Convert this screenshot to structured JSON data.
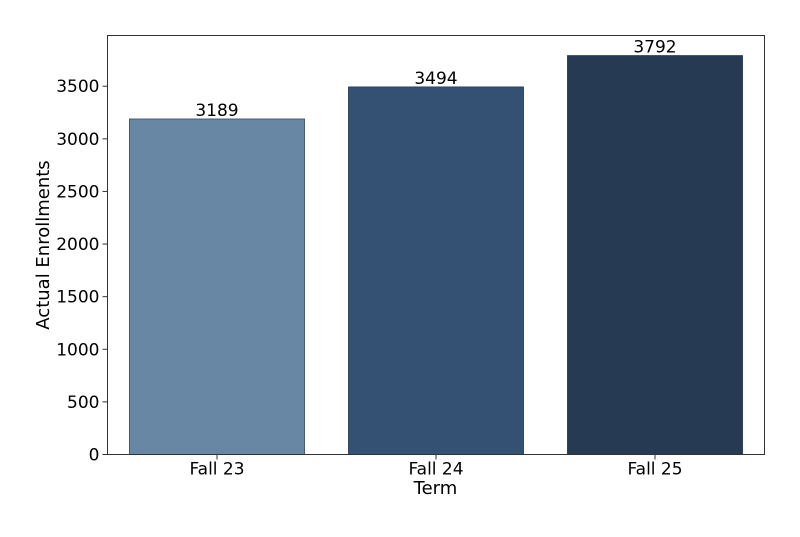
{
  "chart_data": {
    "type": "bar",
    "title": "",
    "xlabel": "Term",
    "ylabel": "Actual Enrollments",
    "categories": [
      "Fall 23",
      "Fall 24",
      "Fall 25"
    ],
    "values": [
      3189,
      3494,
      3792
    ],
    "data_labels": [
      "3189",
      "3494",
      "3792"
    ],
    "colors": [
      "#6787a4",
      "#345174",
      "#273a53"
    ],
    "ylim": [
      0,
      3982
    ],
    "yticks": [
      0,
      500,
      1000,
      1500,
      2000,
      2500,
      3000,
      3500
    ],
    "grid": false,
    "legend": "none"
  }
}
